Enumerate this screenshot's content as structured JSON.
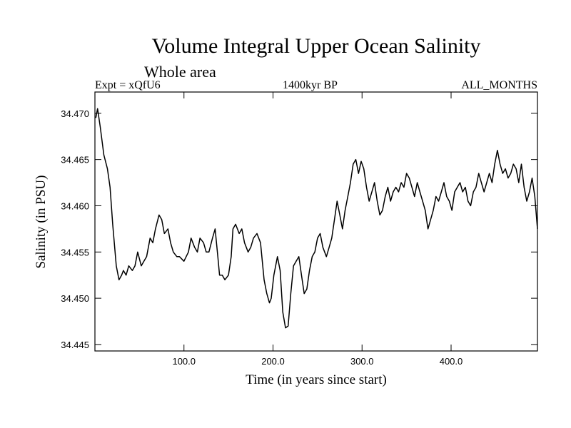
{
  "header": {
    "title": "Volume Integral Upper Ocean Salinity",
    "subtitle": "Whole area",
    "experiment": "Expt = xQfU6",
    "era": "1400kyr BP",
    "months": "ALL_MONTHS"
  },
  "chart_data": {
    "type": "line",
    "title": "Volume Integral Upper Ocean Salinity",
    "xlabel": "Time (in years since start)",
    "ylabel": "Salinity (in PSU)",
    "xlim": [
      0,
      497
    ],
    "ylim": [
      34.4443,
      34.4723
    ],
    "xticks": [
      100,
      200,
      300,
      400
    ],
    "xtick_labels": [
      "100.0",
      "200.0",
      "300.0",
      "400.0"
    ],
    "yticks": [
      34.445,
      34.45,
      34.455,
      34.46,
      34.465,
      34.47
    ],
    "ytick_labels": [
      "34.445",
      "34.450",
      "34.455",
      "34.460",
      "34.465",
      "34.470"
    ],
    "series": [
      {
        "name": "Salinity",
        "x": [
          1,
          3,
          6,
          10,
          14,
          17,
          20,
          24,
          27,
          30,
          32,
          35,
          38,
          42,
          45,
          48,
          52,
          55,
          58,
          62,
          65,
          68,
          72,
          75,
          78,
          82,
          85,
          88,
          92,
          95,
          100,
          105,
          108,
          112,
          115,
          118,
          122,
          125,
          128,
          132,
          135,
          138,
          140,
          143,
          146,
          150,
          153,
          155,
          158,
          162,
          165,
          168,
          172,
          175,
          178,
          182,
          186,
          190,
          193,
          196,
          198,
          201,
          205,
          208,
          211,
          214,
          217,
          220,
          223,
          226,
          229,
          232,
          235,
          238,
          241,
          244,
          247,
          250,
          253,
          256,
          260,
          263,
          266,
          269,
          272,
          275,
          278,
          281,
          284,
          287,
          290,
          293,
          296,
          299,
          302,
          305,
          308,
          311,
          314,
          317,
          320,
          323,
          326,
          329,
          332,
          335,
          338,
          341,
          344,
          347,
          350,
          353,
          356,
          359,
          362,
          365,
          368,
          371,
          374,
          377,
          380,
          383,
          386,
          389,
          392,
          395,
          398,
          401,
          404,
          407,
          410,
          413,
          416,
          419,
          422,
          425,
          428,
          431,
          434,
          437,
          440,
          443,
          446,
          449,
          452,
          455,
          458,
          461,
          464,
          467,
          470,
          473,
          476,
          479,
          482,
          485,
          488,
          491,
          494,
          497
        ],
        "values": [
          34.4695,
          34.4705,
          34.4685,
          34.4655,
          34.464,
          34.462,
          34.458,
          34.4535,
          34.452,
          34.4525,
          34.453,
          34.4525,
          34.4535,
          34.453,
          34.4535,
          34.455,
          34.4535,
          34.454,
          34.4545,
          34.4565,
          34.456,
          34.4575,
          34.459,
          34.4585,
          34.457,
          34.4575,
          34.456,
          34.455,
          34.4545,
          34.4545,
          34.454,
          34.455,
          34.4565,
          34.4555,
          34.455,
          34.4565,
          34.456,
          34.455,
          34.455,
          34.4565,
          34.4575,
          34.4545,
          34.4525,
          34.4525,
          34.452,
          34.4525,
          34.4545,
          34.4575,
          34.458,
          34.457,
          34.4575,
          34.456,
          34.455,
          34.4555,
          34.4565,
          34.457,
          34.456,
          34.452,
          34.4505,
          34.4495,
          34.45,
          34.4525,
          34.4545,
          34.453,
          34.4485,
          34.4468,
          34.447,
          34.4505,
          34.4535,
          34.454,
          34.4545,
          34.4525,
          34.4505,
          34.451,
          34.453,
          34.4545,
          34.455,
          34.4565,
          34.457,
          34.4555,
          34.4545,
          34.4555,
          34.4565,
          34.4585,
          34.4605,
          34.459,
          34.4575,
          34.4595,
          34.461,
          34.4625,
          34.4645,
          34.465,
          34.4635,
          34.4648,
          34.464,
          34.462,
          34.4605,
          34.4615,
          34.4625,
          34.4605,
          34.459,
          34.4595,
          34.461,
          34.462,
          34.4605,
          34.4615,
          34.462,
          34.4615,
          34.4625,
          34.462,
          34.4635,
          34.463,
          34.462,
          34.461,
          34.4625,
          34.4615,
          34.4605,
          34.4595,
          34.4575,
          34.4585,
          34.4595,
          34.461,
          34.4605,
          34.4615,
          34.4625,
          34.461,
          34.4605,
          34.4595,
          34.4615,
          34.462,
          34.4625,
          34.4615,
          34.462,
          34.4605,
          34.46,
          34.4615,
          34.462,
          34.4635,
          34.4625,
          34.4615,
          34.4625,
          34.4635,
          34.4625,
          34.4645,
          34.466,
          34.4645,
          34.4635,
          34.464,
          34.463,
          34.4635,
          34.4645,
          34.464,
          34.4625,
          34.4645,
          34.462,
          34.4605,
          34.4615,
          34.463,
          34.461,
          34.4575
        ]
      }
    ]
  }
}
